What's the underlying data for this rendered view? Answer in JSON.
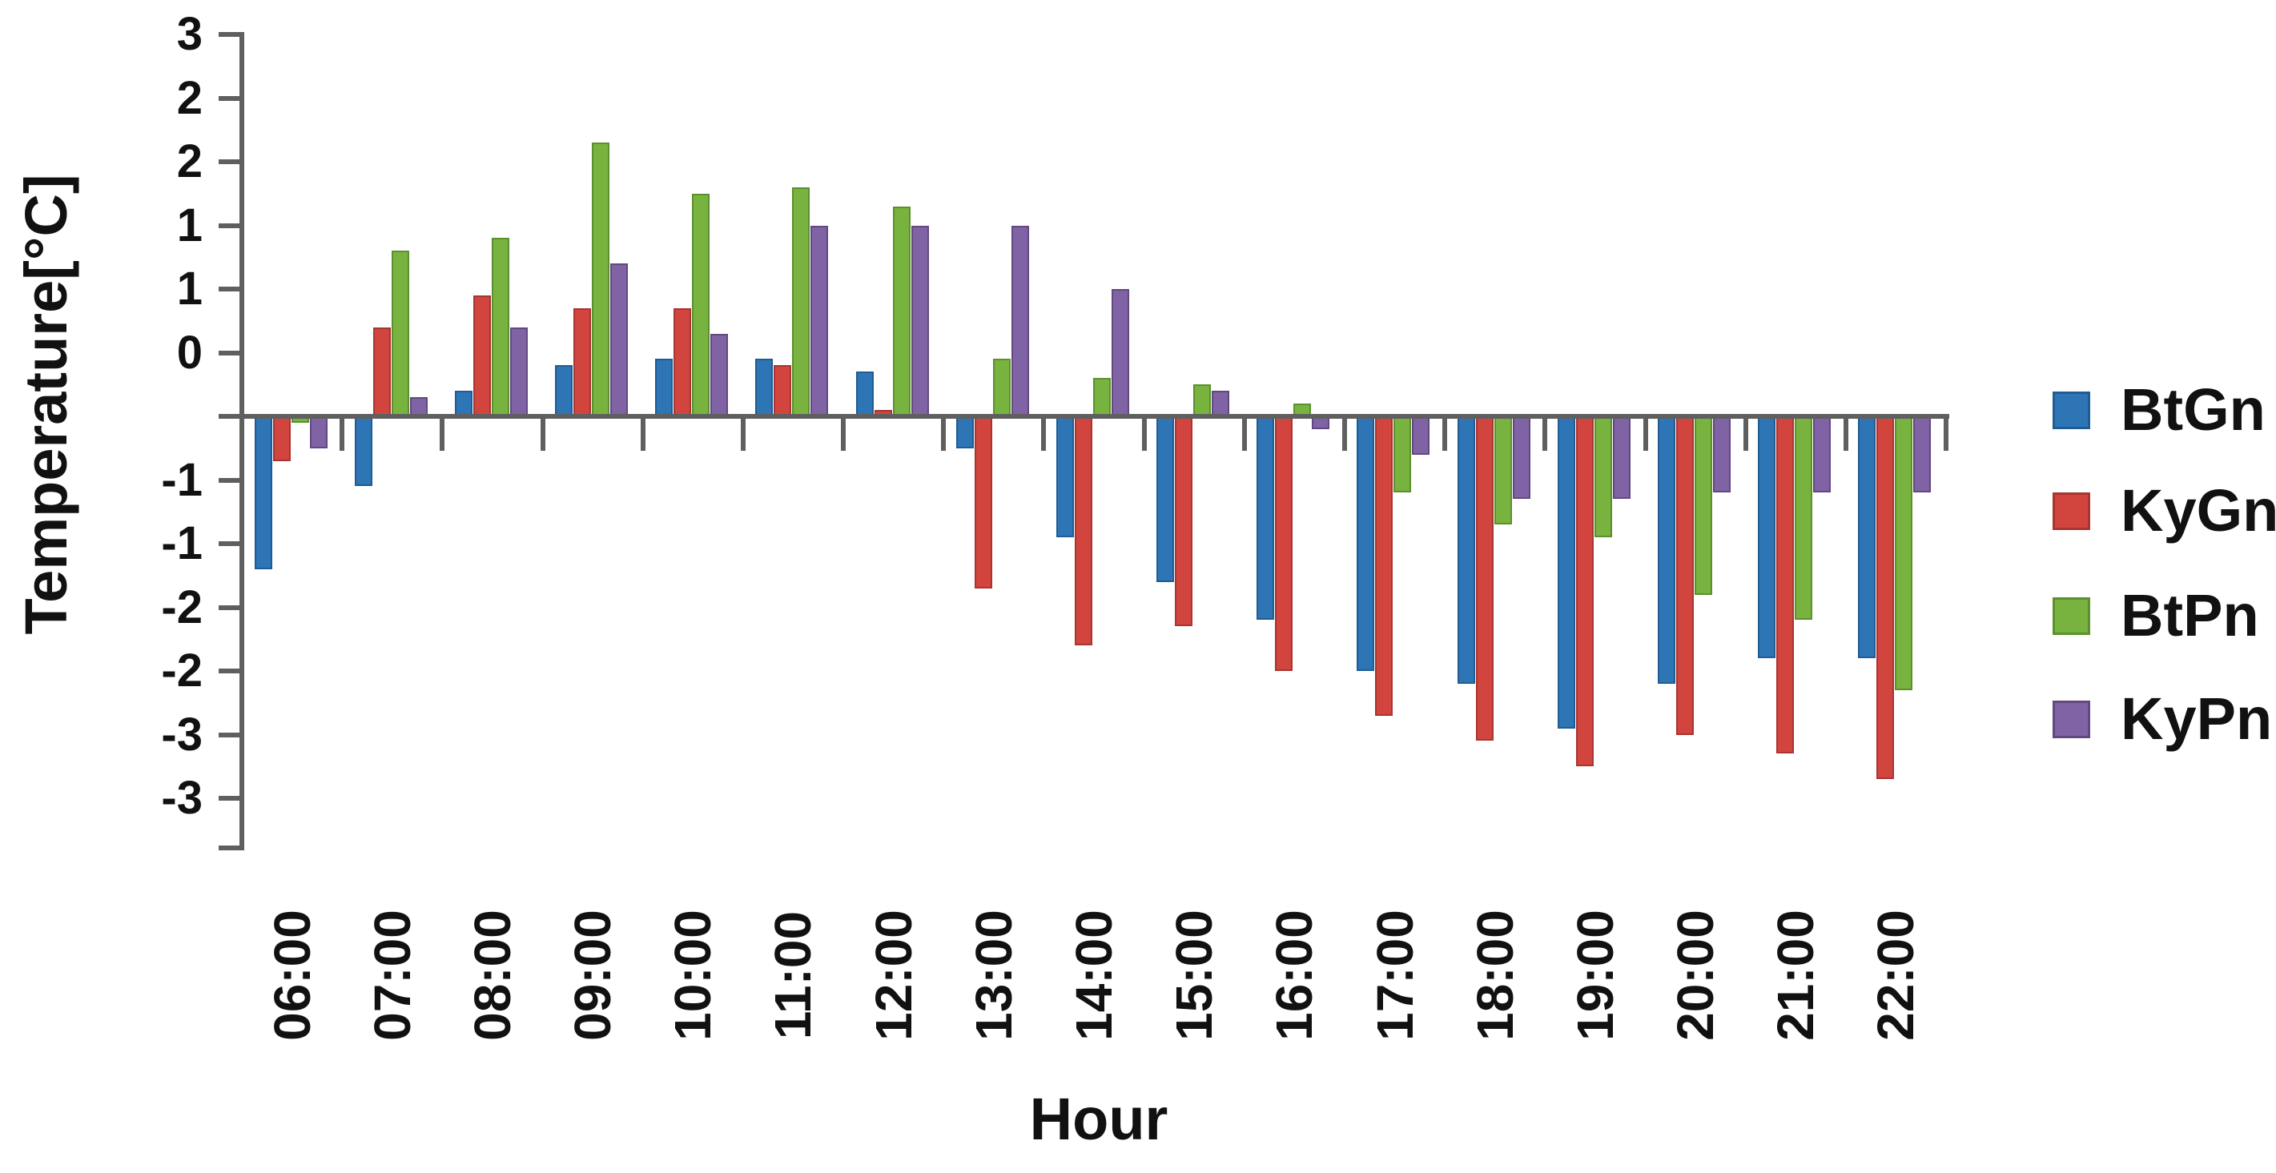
{
  "colors": {
    "background": "#ffffff",
    "axis": "#5f5f5f",
    "text": "#111111"
  },
  "chart_data": {
    "type": "bar",
    "title": "",
    "xlabel": "Hour",
    "ylabel": "Temperature[°C]",
    "grid": false,
    "legend_position": "right",
    "categories": [
      "06:00",
      "07:00",
      "08:00",
      "09:00",
      "10:00",
      "11:00",
      "12:00",
      "13:00",
      "14:00",
      "15:00",
      "16:00",
      "17:00",
      "18:00",
      "19:00",
      "20:00",
      "21:00",
      "22:00"
    ],
    "series": [
      {
        "name": "BtGn",
        "color": "#2E75B6",
        "border": "#1F5C94",
        "values": [
          -1.2,
          -0.55,
          0.2,
          0.4,
          0.45,
          0.45,
          0.35,
          -0.25,
          -0.95,
          -1.3,
          -1.6,
          -2.0,
          -2.1,
          -2.45,
          -2.1,
          -1.9,
          -1.9
        ]
      },
      {
        "name": "KyGn",
        "color": "#D2453E",
        "border": "#A83530",
        "values": [
          -0.35,
          0.7,
          0.95,
          0.85,
          0.85,
          0.4,
          0.05,
          -1.35,
          -1.8,
          -1.65,
          -2.0,
          -2.35,
          -2.55,
          -2.75,
          -2.5,
          -2.65,
          -2.85
        ]
      },
      {
        "name": "BtPn",
        "color": "#79B33F",
        "border": "#5C8F2E",
        "values": [
          -0.05,
          1.3,
          1.4,
          2.15,
          1.75,
          1.8,
          1.65,
          0.45,
          0.3,
          0.25,
          0.1,
          -0.6,
          -0.85,
          -0.95,
          -1.4,
          -1.6,
          -2.15
        ]
      },
      {
        "name": "KyPn",
        "color": "#7F63A5",
        "border": "#63487F",
        "values": [
          -0.25,
          0.15,
          0.7,
          1.2,
          0.65,
          1.5,
          1.5,
          1.5,
          1.0,
          0.2,
          -0.1,
          -0.3,
          -0.65,
          -0.65,
          -0.6,
          -0.6,
          -0.6
        ]
      }
    ],
    "y_axis": {
      "min": -3,
      "max": 3,
      "step": 0.5,
      "tick_labels": [
        "3",
        "2",
        "2",
        "1",
        "1",
        "0",
        "",
        "-1",
        "-1",
        "-2",
        "-2",
        "-3",
        "-3"
      ]
    }
  }
}
